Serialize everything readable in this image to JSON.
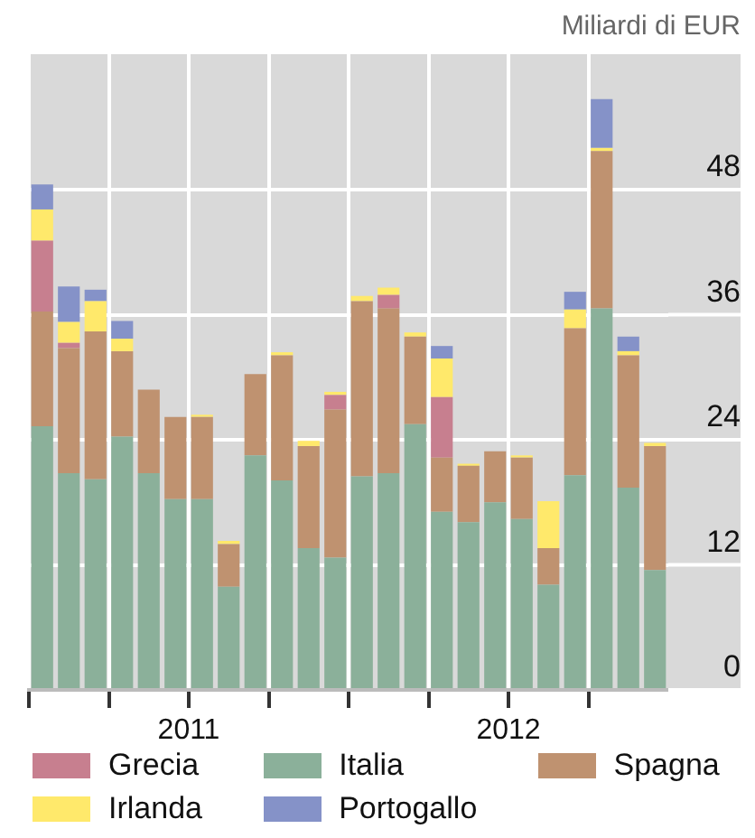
{
  "chart_data": {
    "type": "bar",
    "stacked": true,
    "ylabel": "Miliardi di EUR",
    "categories": [
      null,
      null,
      null,
      null,
      null,
      "2011",
      null,
      null,
      null,
      null,
      null,
      null,
      null,
      null,
      null,
      null,
      null,
      "2012",
      null,
      null,
      null,
      null,
      null,
      null
    ],
    "series": [
      {
        "name": "Italia",
        "color": "#8bb09a",
        "values": [
          25.3,
          20.8,
          20.2,
          24.3,
          20.8,
          18.3,
          18.3,
          9.9,
          22.5,
          20.1,
          13.6,
          12.7,
          20.5,
          20.8,
          25.5,
          17.1,
          16.1,
          18.0,
          16.4,
          10.1,
          20.6,
          36.6,
          19.4,
          11.5
        ]
      },
      {
        "name": "Spagna",
        "color": "#bf9270",
        "values": [
          11.0,
          12.0,
          14.2,
          8.2,
          8.0,
          7.9,
          7.9,
          4.1,
          7.8,
          12.0,
          9.8,
          14.2,
          16.8,
          15.8,
          8.4,
          5.2,
          5.4,
          4.9,
          5.9,
          3.5,
          14.1,
          15.1,
          12.7,
          11.9
        ]
      },
      {
        "name": "Grecia",
        "color": "#c77f8f",
        "values": [
          6.8,
          0.5,
          null,
          null,
          null,
          null,
          null,
          null,
          null,
          null,
          null,
          1.4,
          null,
          1.3,
          null,
          5.8,
          null,
          null,
          null,
          null,
          null,
          null,
          null,
          null
        ]
      },
      {
        "name": "Irlanda",
        "color": "#ffe96b",
        "values": [
          3.0,
          2.0,
          2.9,
          1.2,
          null,
          null,
          0.2,
          0.3,
          null,
          0.3,
          0.5,
          0.3,
          0.5,
          0.7,
          0.4,
          3.7,
          0.2,
          null,
          0.2,
          4.5,
          1.8,
          0.3,
          0.4,
          0.3
        ]
      },
      {
        "name": "Portogallo",
        "color": "#8592c8",
        "values": [
          2.4,
          3.4,
          1.1,
          1.7,
          null,
          null,
          null,
          null,
          null,
          null,
          null,
          null,
          null,
          null,
          null,
          1.2,
          null,
          null,
          null,
          null,
          1.7,
          4.7,
          1.4,
          null
        ]
      }
    ],
    "ylim": [
      0,
      61
    ],
    "yticks": [
      0,
      12,
      24,
      36,
      48
    ],
    "grid": true,
    "legend": "bottom"
  }
}
